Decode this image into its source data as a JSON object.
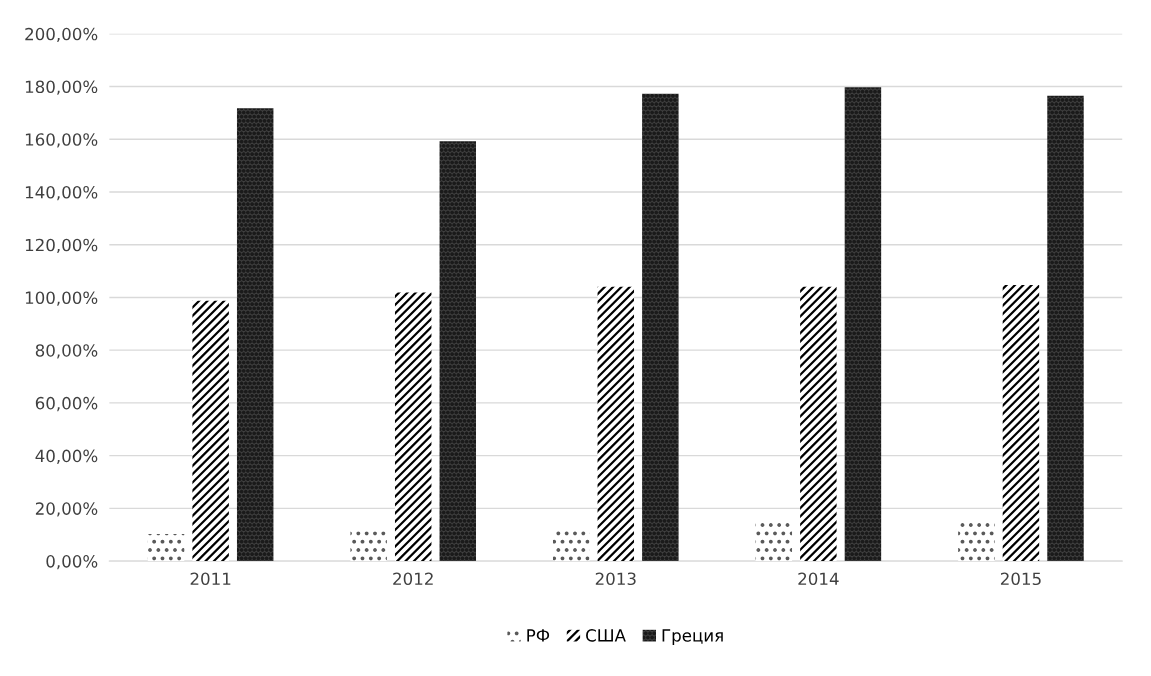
{
  "chart_data": {
    "type": "bar",
    "categories": [
      "2011",
      "2012",
      "2013",
      "2014",
      "2015"
    ],
    "series": [
      {
        "name": "РФ",
        "color": "#595959",
        "values": [
          10.3,
          11.3,
          12.8,
          15.4,
          15.4
        ]
      },
      {
        "name": "США",
        "color": "#000000",
        "values": [
          98.7,
          101.9,
          104.1,
          104.1,
          104.7
        ]
      },
      {
        "name": "Греция",
        "color": "#1a1a1a",
        "values": [
          171.8,
          159.2,
          177.3,
          179.7,
          176.5
        ]
      }
    ],
    "ylim": [
      0,
      200
    ],
    "yticks": [
      {
        "value": 0,
        "label": "0,00%"
      },
      {
        "value": 20,
        "label": "20,00%"
      },
      {
        "value": 40,
        "label": "40,00%"
      },
      {
        "value": 60,
        "label": "60,00%"
      },
      {
        "value": 80,
        "label": "80,00%"
      },
      {
        "value": 100,
        "label": "100,00%"
      },
      {
        "value": 120,
        "label": "120,00%"
      },
      {
        "value": 140,
        "label": "140,00%"
      },
      {
        "value": 160,
        "label": "160,00%"
      },
      {
        "value": 180,
        "label": "180,00%"
      },
      {
        "value": 200,
        "label": "200,00%"
      }
    ],
    "grid": "y",
    "legend": "bottom"
  }
}
